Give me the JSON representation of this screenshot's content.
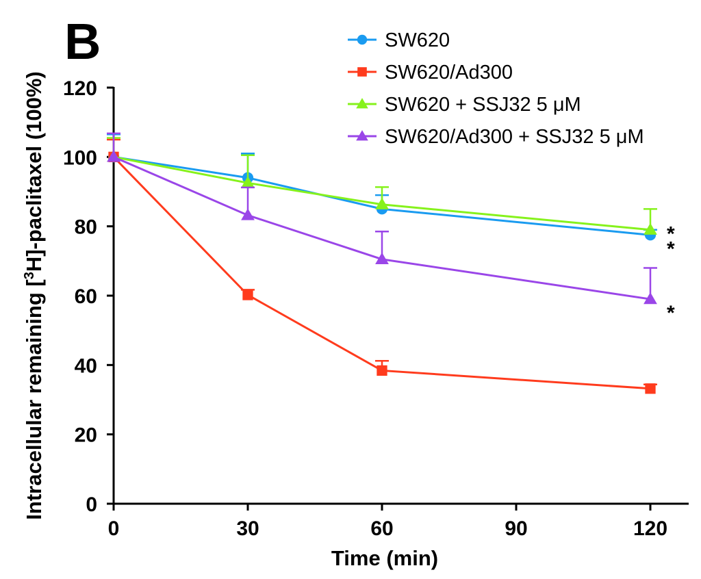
{
  "chart_data": {
    "type": "line",
    "panel_label": "B",
    "title": "",
    "xlabel": "Time (min)",
    "ylabel_pre": "Intracellular remaining [",
    "ylabel_sup": "3",
    "ylabel_post": "H]-paclitaxel (100%)",
    "x": [
      0,
      30,
      60,
      120
    ],
    "xlim": [
      0,
      130
    ],
    "ylim": [
      0,
      120
    ],
    "xticks": [
      0,
      30,
      60,
      90,
      120
    ],
    "yticks": [
      0,
      20,
      40,
      60,
      80,
      100,
      120
    ],
    "grid": false,
    "legend_position": "top-right",
    "series": [
      {
        "name": "SW620",
        "color": "#1a9bf0",
        "marker": "circle",
        "values": [
          100,
          94,
          85,
          77.5
        ],
        "errors": [
          6.5,
          7,
          4,
          1.5
        ],
        "significance": [
          "",
          "",
          "",
          "*"
        ]
      },
      {
        "name": "SW620/Ad300",
        "color": "#ff3b1d",
        "marker": "square",
        "values": [
          100,
          60.2,
          38.4,
          33.2
        ],
        "errors": [
          5,
          1.5,
          2.8,
          1.2
        ],
        "significance": [
          "",
          "",
          "",
          ""
        ]
      },
      {
        "name": "SW620 + SSJ32 5 μM",
        "color": "#86f21c",
        "marker": "triangle",
        "values": [
          100,
          92.5,
          86.3,
          79
        ],
        "errors": [
          5.5,
          8,
          5,
          6
        ],
        "significance": [
          "",
          "",
          "",
          "*"
        ]
      },
      {
        "name": "SW620/Ad300 + SSJ32 5 μM",
        "color": "#9a46e8",
        "marker": "triangle",
        "values": [
          100,
          83.2,
          70.5,
          59
        ],
        "errors": [
          6.8,
          8,
          8,
          9
        ],
        "significance": [
          "",
          "",
          "",
          "*"
        ]
      }
    ]
  }
}
